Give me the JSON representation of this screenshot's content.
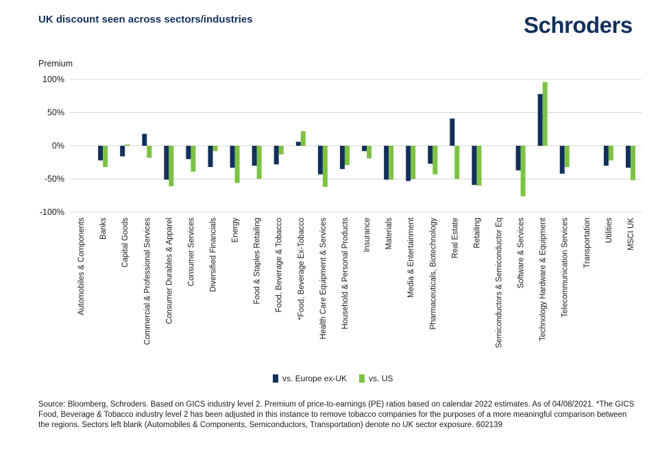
{
  "title": "UK discount seen across sectors/industries",
  "logo_text": "Schroders",
  "source": "Source: Bloomberg, Schroders. Based on GICS industry level 2. Premium of price-to-earnings (PE) ratios based on calendar 2022 estimates. As of 04/08/2021. *The GICS Food, Beverage & Tobacco industry level 2 has been adjusted in this instance to remove tobacco companies for the purposes of a more meaningful comparison between the regions. Sectors left blank (Automobiles & Components, Semiconductors, Transportation) denote no UK sector exposure. 602139",
  "colors": {
    "navy": "#13305c",
    "green": "#7dc243",
    "grid": "#d4d4d4"
  },
  "chart_data": {
    "type": "bar",
    "ylabel": "Premium",
    "ylim": [
      -100,
      100
    ],
    "yticks": [
      100,
      50,
      0,
      -50,
      -100
    ],
    "ytick_labels": [
      "100%",
      "50%",
      "0%",
      "-50%",
      "-100%"
    ],
    "grid": true,
    "legend_position": "bottom",
    "categories": [
      "Automobiles & Components",
      "Banks",
      "Capital Goods",
      "Commercial & Professional Services",
      "Consumer Durables & Apparel",
      "Consumer Services",
      "Diversified Financials",
      "Energy",
      "Food & Staples Retailing",
      "Food, Beverage & Tobacco",
      "*Food, Beverage Ex-Tobacco",
      "Health Care Equipment & Services",
      "Household & Personal Products",
      "Insurance",
      "Materials",
      "Media & Entertainment",
      "Pharmaceuticals, Biotechnology",
      "Real Estate",
      "Retailing",
      "Semiconductors & Semiconductor Eq",
      "Software & Services",
      "Technology Hardware & Equipment",
      "Telecommunication Services",
      "Transportation",
      "Utilities",
      "MSCI UK"
    ],
    "series": [
      {
        "name": "vs. Europe ex-UK",
        "values": [
          null,
          -22,
          -16,
          18,
          -51,
          -20,
          -32,
          -33,
          -30,
          -28,
          6,
          -43,
          -35,
          -8,
          -51,
          -53,
          -27,
          41,
          -59,
          null,
          -37,
          78,
          -42,
          null,
          -30,
          -33
        ]
      },
      {
        "name": "vs. US",
        "values": [
          null,
          -32,
          2,
          -18,
          -61,
          -39,
          -8,
          -56,
          -50,
          -13,
          22,
          -62,
          -29,
          -19,
          -51,
          -50,
          -43,
          -50,
          -60,
          null,
          -76,
          96,
          -32,
          null,
          -22,
          -52
        ]
      }
    ]
  }
}
